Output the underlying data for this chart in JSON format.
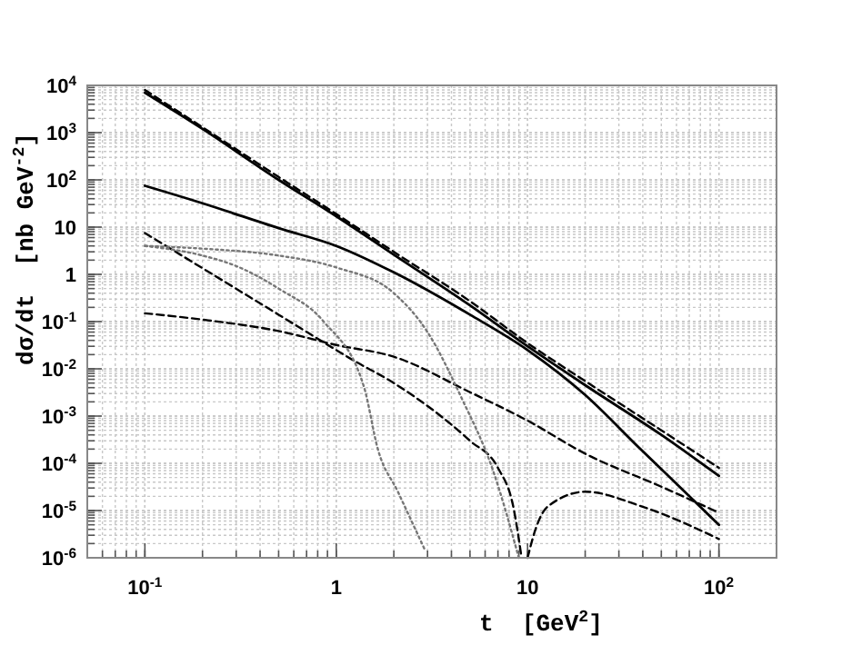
{
  "chart_data": {
    "type": "line",
    "xlabel": "t  [GeV$^{2}$]",
    "ylabel": "dσ/dt  [nb GeV$^{-2}$]",
    "log": "xy",
    "grid": true,
    "xlim": [
      0.05,
      200
    ],
    "ylim": [
      1e-06,
      10000.0
    ],
    "xticks": [
      {
        "value": 0.1,
        "label": "10$^{-1}$"
      },
      1,
      10,
      {
        "value": 100,
        "label": "10$^{2}$"
      }
    ],
    "yticks": [
      {
        "value": 1e-06,
        "label": "10$^{-6}$"
      },
      {
        "value": 1e-05,
        "label": "10$^{-5}$"
      },
      {
        "value": 0.0001,
        "label": "10$^{-4}$"
      },
      {
        "value": 0.001,
        "label": "10$^{-3}$"
      },
      {
        "value": 0.01,
        "label": "10$^{-2}$"
      },
      {
        "value": 0.1,
        "label": "10$^{-1}$"
      },
      1,
      10,
      {
        "value": 100,
        "label": "10$^{2}$"
      },
      {
        "value": 1000,
        "label": "10$^{3}$"
      },
      {
        "value": 10000,
        "label": "10$^{4}$"
      }
    ],
    "series": [
      {
        "color": "#000000",
        "line_style": "dashed",
        "x": [
          0.1,
          0.2,
          0.5,
          1,
          2,
          5,
          10,
          20,
          50,
          100
        ],
        "values": [
          8000,
          1300,
          115,
          19,
          3,
          0.27,
          0.035,
          0.0055,
          0.0005,
          8e-05
        ]
      },
      {
        "color": "#000000",
        "line_style": "solid",
        "x": [
          0.1,
          0.2,
          0.5,
          1,
          2,
          5,
          10,
          20,
          50,
          100
        ],
        "values": [
          7000,
          1200,
          100,
          17,
          2.6,
          0.22,
          0.03,
          0.0045,
          0.0004,
          5.4e-05
        ]
      },
      {
        "color": "#000000",
        "line_style": "solid",
        "x": [
          0.1,
          0.2,
          0.5,
          1,
          2,
          5,
          10,
          20,
          38,
          100
        ],
        "values": [
          75,
          32,
          9.5,
          4,
          1.1,
          0.14,
          0.025,
          0.0028,
          0.00022,
          5e-06
        ]
      },
      {
        "color": "#000000",
        "line_style": "dashed",
        "x": [
          0.1,
          0.2,
          0.5,
          1,
          1.2,
          2,
          5,
          7,
          8.5,
          9.3
        ],
        "values": [
          7.5,
          1.35,
          0.14,
          0.025,
          0.016,
          0.005,
          0.0003,
          8e-05,
          1e-05,
          1e-06
        ]
      },
      {
        "color": "#000000",
        "line_style": "dashed",
        "x": [
          10,
          11,
          12.7,
          20,
          40,
          100
        ],
        "values": [
          1e-06,
          4e-06,
          1.2e-05,
          2.5e-05,
          1.2e-05,
          2.5e-06
        ]
      },
      {
        "color": "#000000",
        "line_style": "dashed",
        "x": [
          0.1,
          0.2,
          0.5,
          1,
          2,
          5,
          10,
          20,
          50,
          100
        ],
        "values": [
          0.15,
          0.11,
          0.063,
          0.032,
          0.018,
          0.0032,
          0.0008,
          0.00016,
          3.2e-05,
          9e-06
        ]
      },
      {
        "color": "#777777",
        "line_style": "dotted",
        "x": [
          0.1,
          0.2,
          0.3,
          0.5,
          0.86,
          1.4,
          1.65,
          2.1,
          2.9
        ],
        "values": [
          4,
          2.5,
          1.5,
          0.5,
          0.1,
          0.004,
          0.0002,
          2.5e-05,
          1.5e-06
        ]
      },
      {
        "color": "#777777",
        "line_style": "dotted",
        "x": [
          0.1,
          0.2,
          0.5,
          1,
          2,
          3,
          4.5,
          6.6,
          9
        ],
        "values": [
          4,
          3.5,
          2.5,
          1.4,
          0.4,
          0.06,
          0.0025,
          7e-05,
          1e-06
        ]
      }
    ]
  }
}
